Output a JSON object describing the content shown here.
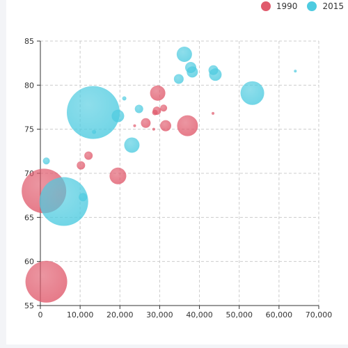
{
  "legend": {
    "items": [
      {
        "label": "1990",
        "color": "#e05a6c"
      },
      {
        "label": "2015",
        "color": "#4ecbe0"
      }
    ]
  },
  "chart_data": {
    "type": "scatter",
    "subtype": "bubble",
    "title": "",
    "xlabel": "",
    "ylabel": "",
    "xlim": [
      0,
      70000
    ],
    "ylim": [
      55,
      85
    ],
    "x_ticks": [
      "0",
      "10,000",
      "20,000",
      "30,000",
      "40,000",
      "50,000",
      "60,000",
      "70,000"
    ],
    "y_ticks": [
      "55",
      "60",
      "65",
      "70",
      "75",
      "80",
      "85"
    ],
    "grid": true,
    "legend_position": "top-right",
    "series": [
      {
        "name": "1990",
        "color": "#e05a6c",
        "points": [
          {
            "x": 1500,
            "y": 57.7,
            "size": 30
          },
          {
            "x": 900,
            "y": 68.0,
            "size": 32
          },
          {
            "x": 19500,
            "y": 69.7,
            "size": 12
          },
          {
            "x": 10200,
            "y": 70.9,
            "size": 6
          },
          {
            "x": 12100,
            "y": 72.0,
            "size": 6
          },
          {
            "x": 26500,
            "y": 75.7,
            "size": 7
          },
          {
            "x": 31500,
            "y": 75.4,
            "size": 8
          },
          {
            "x": 37000,
            "y": 75.4,
            "size": 15
          },
          {
            "x": 29500,
            "y": 79.1,
            "size": 11
          },
          {
            "x": 29300,
            "y": 77.1,
            "size": 6
          },
          {
            "x": 31000,
            "y": 77.4,
            "size": 5
          },
          {
            "x": 28800,
            "y": 76.9,
            "size": 4
          },
          {
            "x": 23700,
            "y": 75.4,
            "size": 2
          },
          {
            "x": 28500,
            "y": 75.0,
            "size": 2
          },
          {
            "x": 43400,
            "y": 76.8,
            "size": 2
          }
        ]
      },
      {
        "name": "2015",
        "color": "#4ecbe0",
        "points": [
          {
            "x": 13300,
            "y": 76.9,
            "size": 38
          },
          {
            "x": 5900,
            "y": 66.8,
            "size": 35
          },
          {
            "x": 1500,
            "y": 71.4,
            "size": 5
          },
          {
            "x": 19500,
            "y": 76.5,
            "size": 9
          },
          {
            "x": 21100,
            "y": 78.5,
            "size": 3
          },
          {
            "x": 24800,
            "y": 77.3,
            "size": 6
          },
          {
            "x": 23000,
            "y": 73.2,
            "size": 11
          },
          {
            "x": 36200,
            "y": 83.5,
            "size": 11
          },
          {
            "x": 37800,
            "y": 82.0,
            "size": 8
          },
          {
            "x": 38200,
            "y": 81.5,
            "size": 8
          },
          {
            "x": 34800,
            "y": 80.7,
            "size": 7
          },
          {
            "x": 43500,
            "y": 81.7,
            "size": 7
          },
          {
            "x": 44000,
            "y": 81.2,
            "size": 9
          },
          {
            "x": 53300,
            "y": 79.1,
            "size": 17
          },
          {
            "x": 64100,
            "y": 81.6,
            "size": 2
          },
          {
            "x": 10700,
            "y": 67.3,
            "size": 6
          },
          {
            "x": 13500,
            "y": 74.7,
            "size": 3
          }
        ]
      }
    ]
  }
}
